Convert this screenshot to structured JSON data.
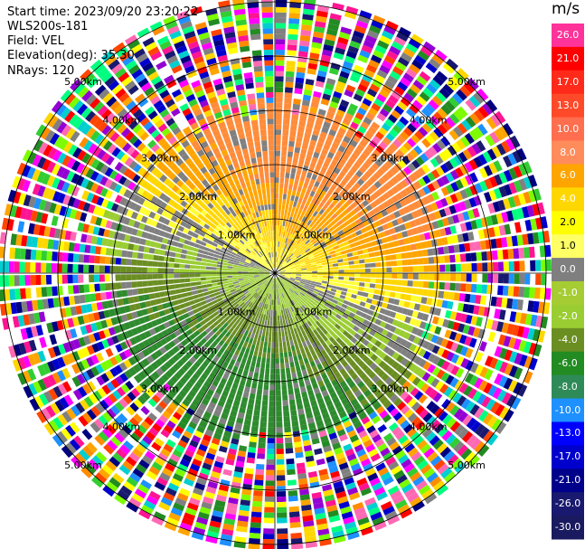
{
  "header": {
    "start_time": "Start time: 2023/09/20 23:20:22",
    "instrument": "WLS200s-181",
    "field": "Field: VEL",
    "elevation": "Elevation(deg): 35.30",
    "nrays": "NRays: 120"
  },
  "chart_data": {
    "type": "heatmap",
    "projection": "polar-ppi",
    "field": "VEL",
    "nrays": 120,
    "range_rings_km": [
      1,
      2,
      3,
      4,
      5
    ],
    "ring_labels": [
      "1.00km",
      "2.00km",
      "3.00km",
      "4.00km",
      "5.00km"
    ],
    "spokes_deg": [
      0,
      30,
      60,
      90,
      120,
      150,
      180,
      210,
      240,
      270,
      300,
      330
    ],
    "max_range_km": 5.1,
    "wind_pattern": {
      "toward_color": "yellow/orange (positive)",
      "away_color": "green (negative)",
      "noise_beyond_km": 3.2
    },
    "colorbar": {
      "unit": "m/s",
      "ticks": [
        "26.0",
        "21.0",
        "17.0",
        "13.0",
        "10.0",
        "8.0",
        "6.0",
        "4.0",
        "2.0",
        "1.0",
        "0.0",
        "-1.0",
        "-2.0",
        "-4.0",
        "-6.0",
        "-8.0",
        "-10.0",
        "-13.0",
        "-17.0",
        "-21.0",
        "-26.0",
        "-30.0"
      ],
      "colors": [
        "#ff3399",
        "#ff0000",
        "#ff2a1a",
        "#ff4a2a",
        "#ff6e4e",
        "#ff8c5a",
        "#ffa500",
        "#ffd700",
        "#ffff00",
        "#ffff66",
        "#7f7f7f",
        "#a6cc33",
        "#9acd32",
        "#6b8e23",
        "#228b22",
        "#2e8b57",
        "#1e90ff",
        "#0000ff",
        "#0000cd",
        "#00008b",
        "#191970",
        "#1a1a60"
      ]
    }
  }
}
